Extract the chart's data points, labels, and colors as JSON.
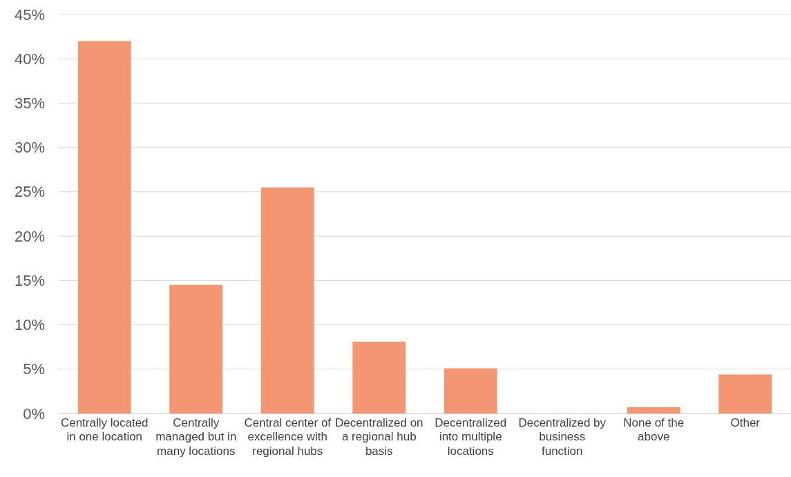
{
  "chart_data": {
    "type": "bar",
    "categories": [
      "Centrally located in one location",
      "Centrally managed but in many locations",
      "Central center of excellence with regional hubs",
      "Decentralized on a regional hub basis",
      "Decentralized into multiple locations",
      "Decentralized by business function",
      "None of the above",
      "Other"
    ],
    "values": [
      42,
      14.5,
      25.5,
      8.1,
      5.1,
      0,
      0.7,
      4.4
    ],
    "color": "#f59672",
    "ylim": [
      0,
      45
    ],
    "yticks": [
      {
        "value": 0,
        "label": "0%"
      },
      {
        "value": 5,
        "label": "5%"
      },
      {
        "value": 10,
        "label": "10%"
      },
      {
        "value": 15,
        "label": "15%"
      },
      {
        "value": 20,
        "label": "20%"
      },
      {
        "value": 25,
        "label": "25%"
      },
      {
        "value": 30,
        "label": "30%"
      },
      {
        "value": 35,
        "label": "35%"
      },
      {
        "value": 40,
        "label": "40%"
      },
      {
        "value": 45,
        "label": "45%"
      }
    ],
    "grid": "y"
  }
}
